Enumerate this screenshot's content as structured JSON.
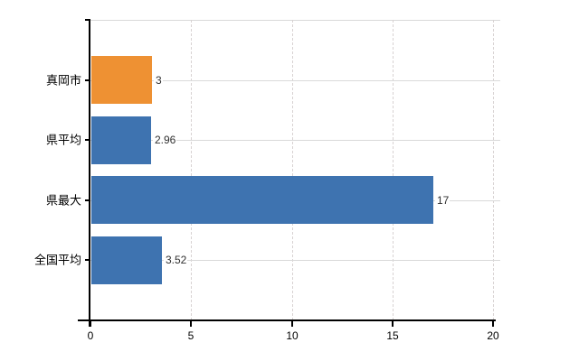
{
  "chart_data": {
    "type": "bar",
    "orientation": "horizontal",
    "title": "",
    "xlabel": "",
    "ylabel": "",
    "categories": [
      "真岡市",
      "県平均",
      "県最大",
      "全国平均"
    ],
    "values": [
      3,
      2.96,
      17,
      3.52
    ],
    "value_labels": [
      "3",
      "2.96",
      "17",
      "3.52"
    ],
    "series": [
      {
        "name": "",
        "values": [
          3,
          2.96,
          17,
          3.52
        ]
      }
    ],
    "bar_colors": [
      "#EE9133",
      "#3E73B0",
      "#3E73B0",
      "#3E73B0"
    ],
    "xticks": [
      0,
      5,
      10,
      15,
      20
    ],
    "xtick_labels": [
      "0",
      "5",
      "10",
      "15",
      "20"
    ],
    "xlim": [
      0,
      20
    ],
    "grid": true,
    "grid_vertical_style": "dashed",
    "grid_horizontal_style": "solid",
    "legend": false,
    "legend_position": "none"
  },
  "colors": {
    "highlight_bar": "#EE9133",
    "default_bar": "#3E73B0",
    "grid_horizontal": "#D9D9D9",
    "grid_vertical": "#D8D2D2",
    "axis": "#000000",
    "category_text": "#000000",
    "value_text": "#303030",
    "tick_text": "#000000",
    "background": "#FFFFFF"
  }
}
